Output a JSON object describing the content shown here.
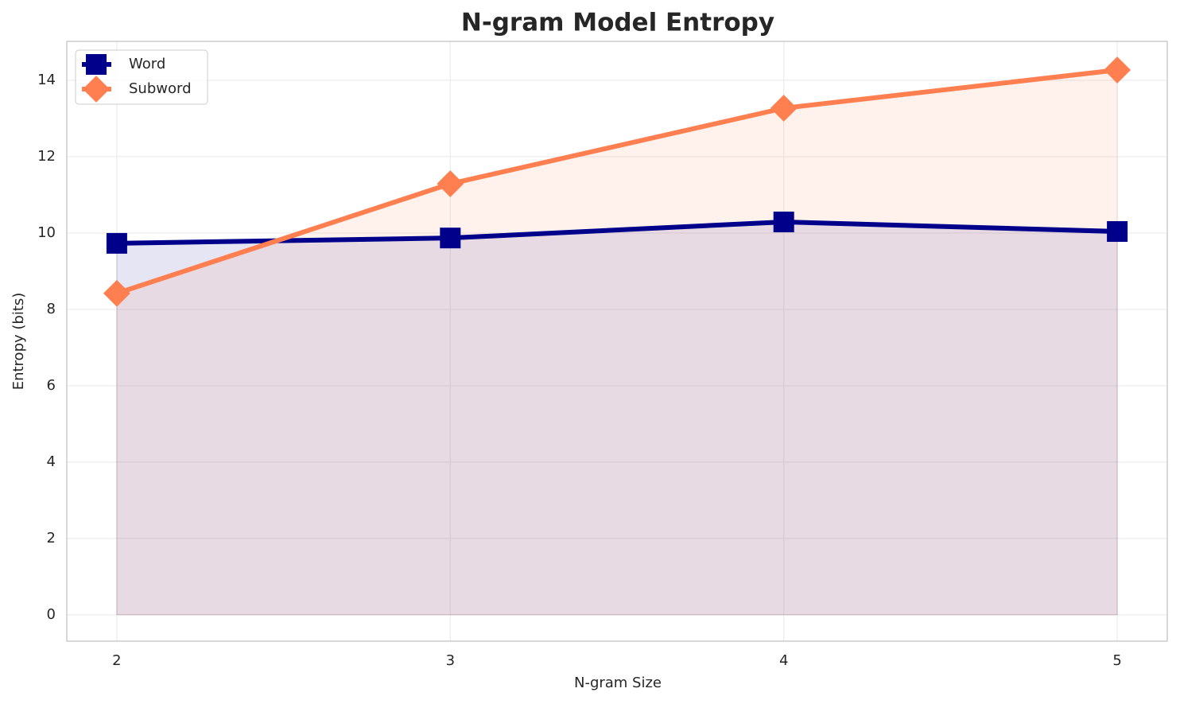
{
  "chart_data": {
    "type": "line",
    "title": "N-gram Model Entropy",
    "x_label": "N-gram Size",
    "y_label": "Entropy (bits)",
    "x": [
      2,
      3,
      4,
      5
    ],
    "series": [
      {
        "name": "Word",
        "color": "#00008b",
        "marker": "square",
        "values": [
          9.73,
          9.87,
          10.29,
          10.04
        ]
      },
      {
        "name": "Subword",
        "color": "#ff7f50",
        "marker": "diamond",
        "values": [
          8.42,
          11.29,
          13.27,
          14.27
        ]
      }
    ],
    "area_fill": true,
    "xlim": [
      1.85,
      5.15
    ],
    "xticks": [
      2,
      3,
      4,
      5
    ],
    "ylim": [
      -0.69,
      15.02
    ],
    "yticks": [
      0,
      2,
      4,
      6,
      8,
      10,
      12,
      14
    ],
    "grid": true,
    "legend": "upper left"
  }
}
